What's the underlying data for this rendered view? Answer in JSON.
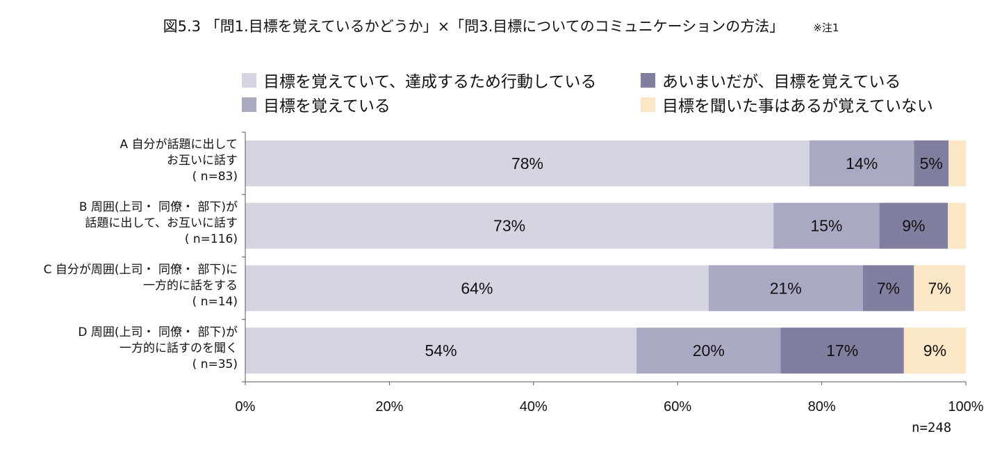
{
  "title": {
    "main": "図5.3 「問1.目標を覚えているかどうか」×「問3.目標についてのコミュニケーションの方法」",
    "note": "※注1"
  },
  "colors": {
    "series": [
      "#d5d5e1",
      "#aaa9c3",
      "#807f9f",
      "#fbe7c6"
    ],
    "axis": "#555555"
  },
  "n_total": "n=248",
  "chart_data": {
    "type": "bar",
    "orientation": "horizontal",
    "stacked": true,
    "categories": [
      [
        "A 自分が話題に出して",
        "お互いに話す",
        "( n=83)"
      ],
      [
        "B 周囲(上司・ 同僚・ 部下)が",
        "話題に出して、お互いに話す",
        "( n=116)"
      ],
      [
        "C 自分が周囲(上司・ 同僚・ 部下)に",
        "一方的に話をする",
        "( n=14)"
      ],
      [
        "D 周囲(上司・ 同僚・ 部下)が",
        "一方的に話すのを聞く",
        "( n=35)"
      ]
    ],
    "series": [
      {
        "name": "目標を覚えていて、達成するため行動している",
        "values": [
          78.3,
          73.3,
          64.3,
          54.3
        ],
        "labels": [
          "78%",
          "73%",
          "64%",
          "54%"
        ]
      },
      {
        "name": "目標を覚えている",
        "values": [
          14.5,
          14.7,
          21.4,
          20.0
        ],
        "labels": [
          "14%",
          "15%",
          "21%",
          "20%"
        ]
      },
      {
        "name": "あいまいだが、目標を覚えている",
        "values": [
          4.8,
          9.5,
          7.1,
          17.1
        ],
        "labels": [
          "5%",
          "9%",
          "7%",
          "17%"
        ]
      },
      {
        "name": "目標を聞いた事はあるが覚えていない",
        "values": [
          2.4,
          2.5,
          7.1,
          8.6
        ],
        "labels": [
          "",
          "",
          "7%",
          "9%"
        ]
      }
    ],
    "xlim": [
      0,
      100
    ],
    "xticks": [
      "0%",
      "20%",
      "40%",
      "60%",
      "80%",
      "100%"
    ],
    "legend_position": "top"
  }
}
